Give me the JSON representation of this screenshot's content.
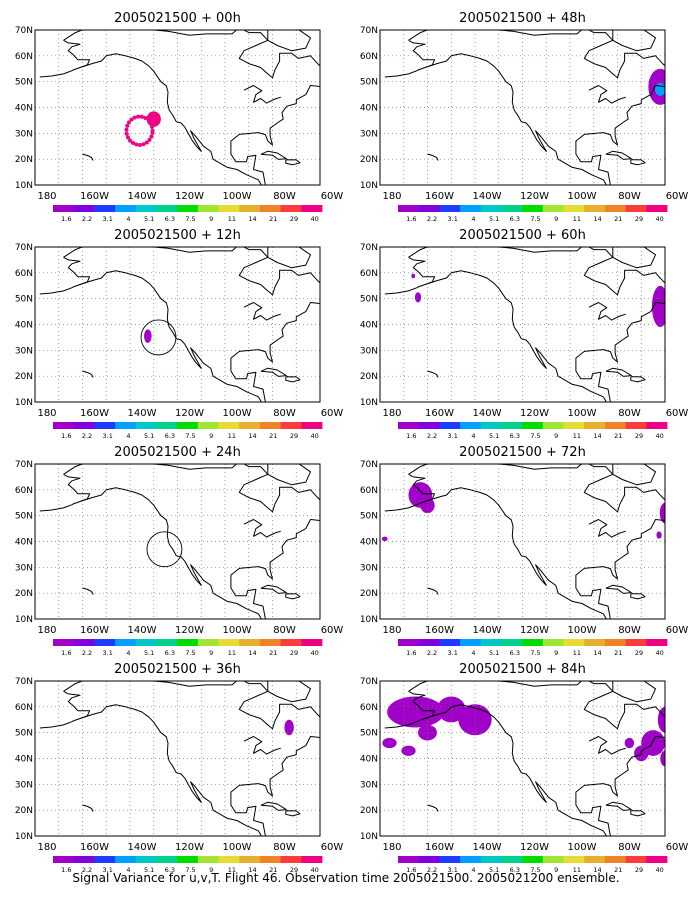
{
  "caption": "Signal Variance for u,v,T. Flight 46. Observation time 2005021500. 2005021200 ensemble.",
  "axes": {
    "lat_labels": [
      "70N",
      "60N",
      "50N",
      "40N",
      "30N",
      "20N",
      "10N"
    ],
    "lon_labels": [
      "180",
      "160W",
      "140W",
      "120W",
      "100W",
      "80W",
      "60W"
    ],
    "lat_range": [
      10,
      70
    ],
    "lon_range": [
      -180,
      -60
    ],
    "grid": "dotted"
  },
  "colorbar": {
    "labels": [
      "1.6",
      "2.2",
      "3.1",
      "4",
      "5.1",
      "6.3",
      "7.5",
      "9",
      "11",
      "14",
      "21",
      "29",
      "40"
    ],
    "colors": [
      "#a000c8",
      "#8200dc",
      "#1e3cff",
      "#00a0ff",
      "#00c8c8",
      "#00d28c",
      "#00dc00",
      "#a0e632",
      "#e6dc32",
      "#e6af2d",
      "#f08228",
      "#fa3c3c",
      "#f00082"
    ]
  },
  "panels": [
    {
      "id": "p00",
      "title": "2005021500 + 00h",
      "col": 0,
      "row": 0
    },
    {
      "id": "p48",
      "title": "2005021500 + 48h",
      "col": 1,
      "row": 0
    },
    {
      "id": "p12",
      "title": "2005021500 + 12h",
      "col": 0,
      "row": 1
    },
    {
      "id": "p60",
      "title": "2005021500 + 60h",
      "col": 1,
      "row": 1
    },
    {
      "id": "p24",
      "title": "2005021500 + 24h",
      "col": 0,
      "row": 2
    },
    {
      "id": "p72",
      "title": "2005021500 + 72h",
      "col": 1,
      "row": 2
    },
    {
      "id": "p36",
      "title": "2005021500 + 36h",
      "col": 0,
      "row": 3
    },
    {
      "id": "p84",
      "title": "2005021500 + 84h",
      "col": 1,
      "row": 3
    }
  ]
}
